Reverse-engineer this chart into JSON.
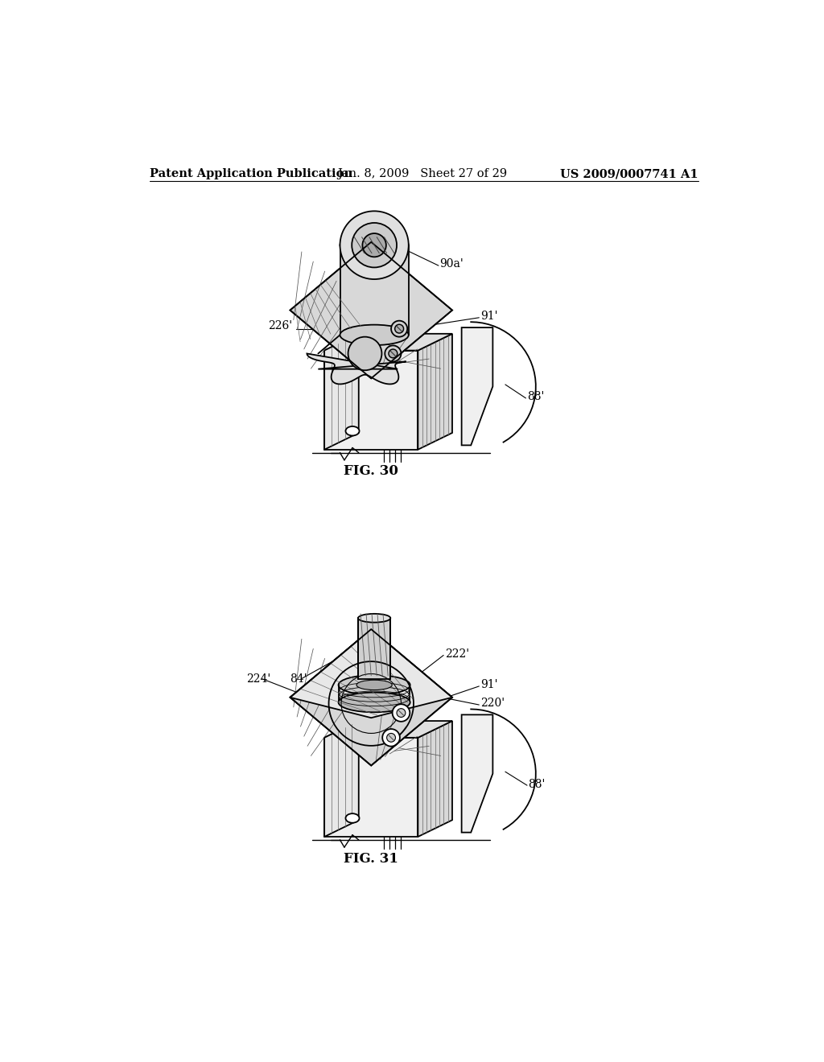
{
  "background_color": "#ffffff",
  "header_left": "Patent Application Publication",
  "header_center": "Jan. 8, 2009   Sheet 27 of 29",
  "header_right": "US 2009/0007741 A1",
  "fig30_label": "FIG. 30",
  "fig31_label": "FIG. 31",
  "line_color": "#000000",
  "text_color": "#000000",
  "font_size_header": 10.5,
  "font_size_label": 12,
  "font_size_annot": 10,
  "gray_light": "#d8d8d8",
  "gray_mid": "#b8b8b8",
  "gray_dark": "#888888",
  "white": "#ffffff"
}
